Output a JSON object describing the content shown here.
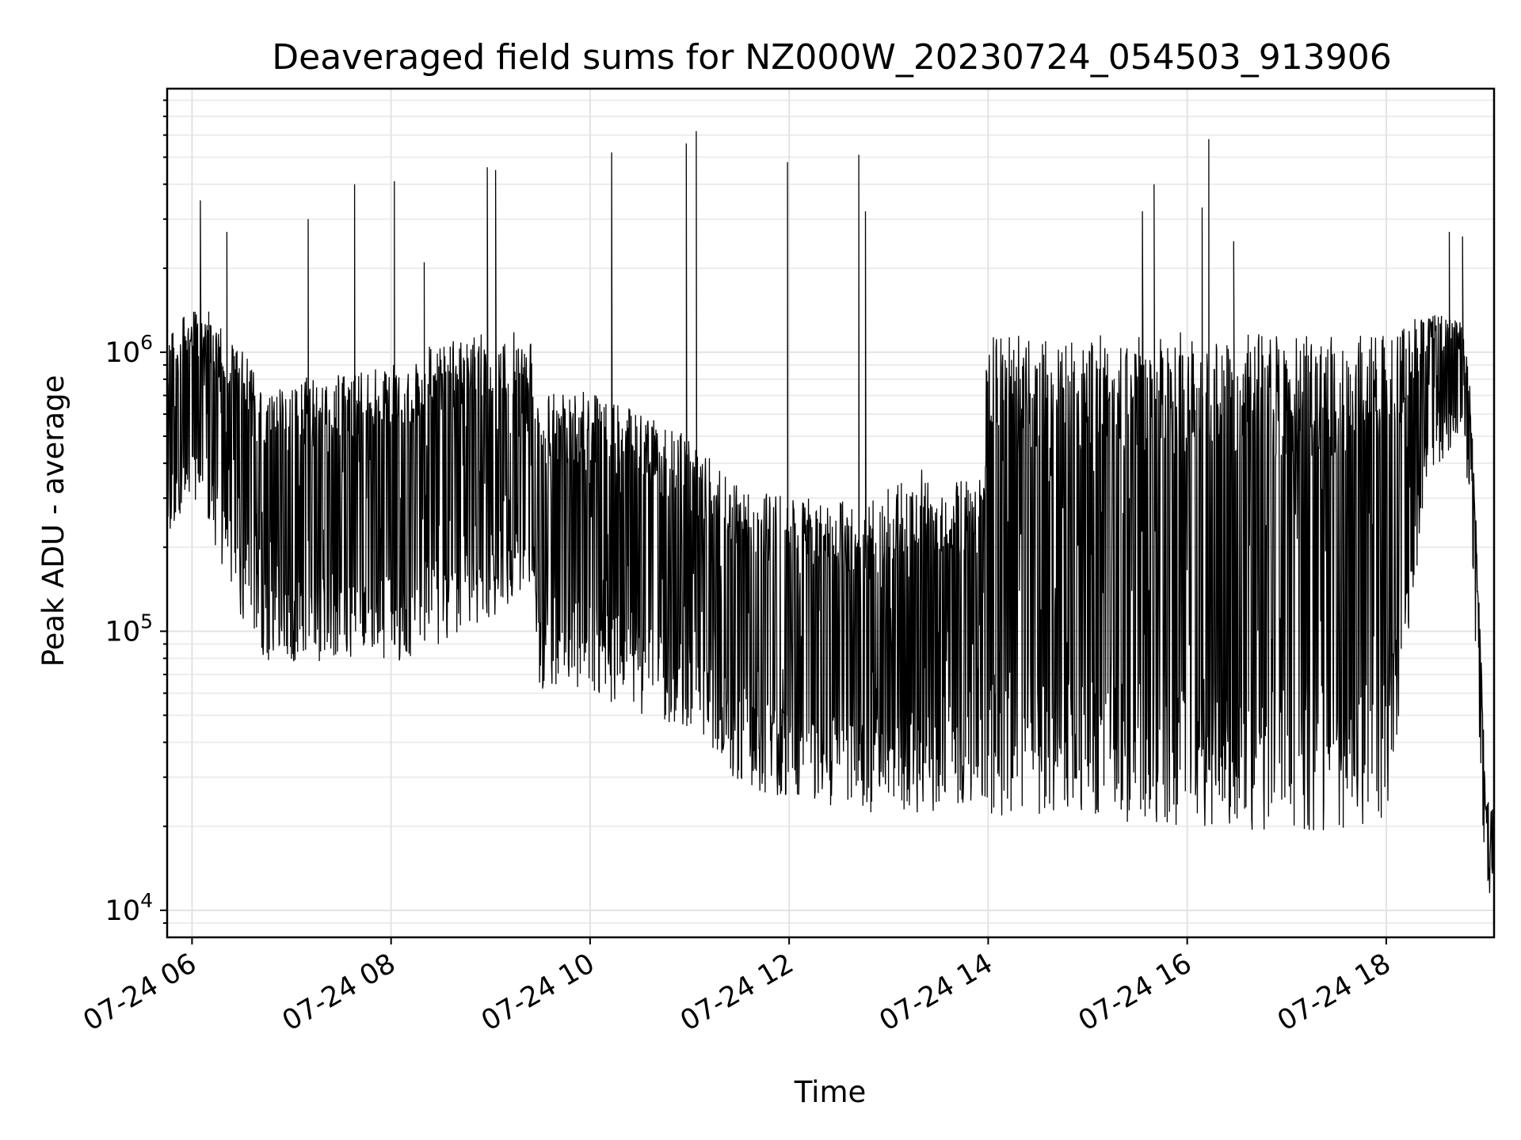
{
  "chart_data": {
    "type": "line",
    "title": "Deaveraged field sums for NZ000W_20230724_054503_913906",
    "xlabel": "Time",
    "ylabel": "Peak ADU - average",
    "yscale": "log",
    "grid": true,
    "grid_minor": true,
    "line_color": "#000000",
    "x_domain": [
      "2023-07-24T05:45:00",
      "2023-07-24T19:05:00"
    ],
    "ylim": [
      8000,
      8800000
    ],
    "x_ticks": [
      {
        "time": "2023-07-24T06:00:00",
        "label": "07-24 06"
      },
      {
        "time": "2023-07-24T08:00:00",
        "label": "07-24 08"
      },
      {
        "time": "2023-07-24T10:00:00",
        "label": "07-24 10"
      },
      {
        "time": "2023-07-24T12:00:00",
        "label": "07-24 12"
      },
      {
        "time": "2023-07-24T14:00:00",
        "label": "07-24 14"
      },
      {
        "time": "2023-07-24T16:00:00",
        "label": "07-24 16"
      },
      {
        "time": "2023-07-24T18:00:00",
        "label": "07-24 18"
      }
    ],
    "y_ticks": [
      {
        "value": 10000,
        "base": "10",
        "exp": "4"
      },
      {
        "value": 100000,
        "base": "10",
        "exp": "5"
      },
      {
        "value": 1000000,
        "base": "10",
        "exp": "6"
      }
    ],
    "envelope": [
      {
        "time": "2023-07-24T05:45:00",
        "low": 220000,
        "high": 1100000
      },
      {
        "time": "2023-07-24T06:00:00",
        "low": 300000,
        "high": 1500000
      },
      {
        "time": "2023-07-24T06:10:00",
        "low": 250000,
        "high": 1400000
      },
      {
        "time": "2023-07-24T06:20:00",
        "low": 150000,
        "high": 1200000
      },
      {
        "time": "2023-07-24T06:40:00",
        "low": 80000,
        "high": 850000
      },
      {
        "time": "2023-07-24T07:00:00",
        "low": 75000,
        "high": 800000
      },
      {
        "time": "2023-07-24T07:30:00",
        "low": 80000,
        "high": 850000
      },
      {
        "time": "2023-07-24T08:00:00",
        "low": 75000,
        "high": 900000
      },
      {
        "time": "2023-07-24T08:30:00",
        "low": 90000,
        "high": 1100000
      },
      {
        "time": "2023-07-24T09:00:00",
        "low": 110000,
        "high": 1300000
      },
      {
        "time": "2023-07-24T09:25:00",
        "low": 130000,
        "high": 1200000
      },
      {
        "time": "2023-07-24T09:30:00",
        "low": 60000,
        "high": 700000
      },
      {
        "time": "2023-07-24T10:00:00",
        "low": 60000,
        "high": 750000
      },
      {
        "time": "2023-07-24T10:30:00",
        "low": 50000,
        "high": 600000
      },
      {
        "time": "2023-07-24T11:00:00",
        "low": 45000,
        "high": 500000
      },
      {
        "time": "2023-07-24T11:30:00",
        "low": 28000,
        "high": 350000
      },
      {
        "time": "2023-07-24T12:00:00",
        "low": 25000,
        "high": 300000
      },
      {
        "time": "2023-07-24T12:30:00",
        "low": 23000,
        "high": 300000
      },
      {
        "time": "2023-07-24T13:00:00",
        "low": 22000,
        "high": 350000
      },
      {
        "time": "2023-07-24T13:30:00",
        "low": 22000,
        "high": 400000
      },
      {
        "time": "2023-07-24T13:55:00",
        "low": 22000,
        "high": 350000
      },
      {
        "time": "2023-07-24T14:00:00",
        "low": 22000,
        "high": 1150000
      },
      {
        "time": "2023-07-24T15:00:00",
        "low": 21000,
        "high": 1150000
      },
      {
        "time": "2023-07-24T16:00:00",
        "low": 20000,
        "high": 1200000
      },
      {
        "time": "2023-07-24T17:00:00",
        "low": 19000,
        "high": 1150000
      },
      {
        "time": "2023-07-24T18:00:00",
        "low": 20000,
        "high": 1150000
      },
      {
        "time": "2023-07-24T18:25:00",
        "low": 350000,
        "high": 1400000
      },
      {
        "time": "2023-07-24T18:45:00",
        "low": 500000,
        "high": 1300000
      },
      {
        "time": "2023-07-24T18:50:00",
        "low": 300000,
        "high": 900000
      },
      {
        "time": "2023-07-24T18:55:00",
        "low": 50000,
        "high": 200000
      },
      {
        "time": "2023-07-24T19:00:00",
        "low": 11000,
        "high": 25000
      },
      {
        "time": "2023-07-24T19:05:00",
        "low": 12000,
        "high": 24000
      }
    ],
    "spikes": [
      {
        "time": "2023-07-24T06:05:00",
        "value": 3500000
      },
      {
        "time": "2023-07-24T06:21:00",
        "value": 2700000
      },
      {
        "time": "2023-07-24T07:10:00",
        "value": 3000000
      },
      {
        "time": "2023-07-24T07:38:00",
        "value": 4000000
      },
      {
        "time": "2023-07-24T08:02:00",
        "value": 4100000
      },
      {
        "time": "2023-07-24T08:20:00",
        "value": 2100000
      },
      {
        "time": "2023-07-24T08:58:00",
        "value": 4600000
      },
      {
        "time": "2023-07-24T09:03:00",
        "value": 4500000
      },
      {
        "time": "2023-07-24T10:13:00",
        "value": 5200000
      },
      {
        "time": "2023-07-24T10:58:00",
        "value": 5600000
      },
      {
        "time": "2023-07-24T11:04:00",
        "value": 6200000
      },
      {
        "time": "2023-07-24T11:59:00",
        "value": 4800000
      },
      {
        "time": "2023-07-24T12:42:00",
        "value": 5100000
      },
      {
        "time": "2023-07-24T12:46:00",
        "value": 3200000
      },
      {
        "time": "2023-07-24T15:33:00",
        "value": 3200000
      },
      {
        "time": "2023-07-24T15:40:00",
        "value": 4000000
      },
      {
        "time": "2023-07-24T16:09:00",
        "value": 3300000
      },
      {
        "time": "2023-07-24T16:13:00",
        "value": 5800000
      },
      {
        "time": "2023-07-24T16:28:00",
        "value": 2500000
      },
      {
        "time": "2023-07-24T18:38:00",
        "value": 2700000
      },
      {
        "time": "2023-07-24T18:46:00",
        "value": 2600000
      }
    ]
  }
}
